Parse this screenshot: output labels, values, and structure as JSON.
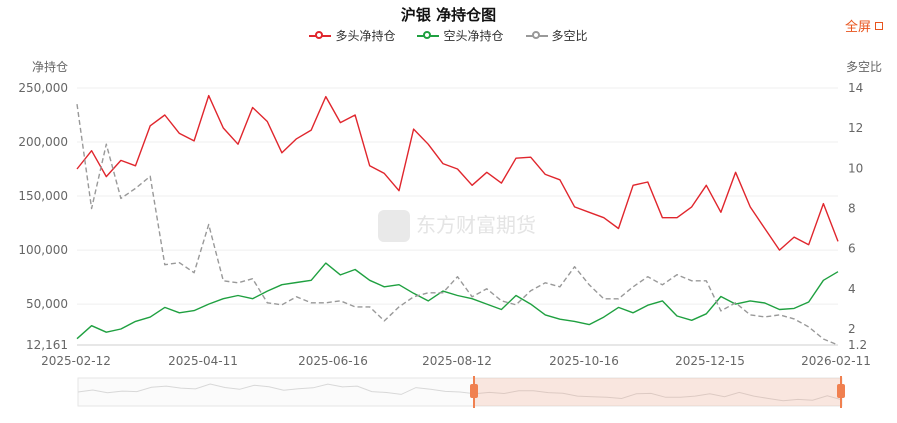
{
  "title": "沪银 净持仓图",
  "fullscreen_label": "全屏",
  "watermark": "东方财富期货",
  "legend": [
    {
      "label": "多头净持仓",
      "color": "#e0262d",
      "dashed": false
    },
    {
      "label": "空头净持仓",
      "color": "#1fa040",
      "dashed": false
    },
    {
      "label": "多空比",
      "color": "#999999",
      "dashed": true
    }
  ],
  "chart_data": {
    "type": "line",
    "ylabel": "净持仓",
    "y2label": "多空比",
    "ylim": [
      12161,
      250000
    ],
    "y2lim": [
      1.2,
      14
    ],
    "y_ticks": [
      "250,000",
      "200,000",
      "150,000",
      "100,000",
      "50,000",
      "12,161"
    ],
    "y_tick_values": [
      250000,
      200000,
      150000,
      100000,
      50000,
      12161
    ],
    "y2_ticks": [
      "14",
      "12",
      "10",
      "8",
      "6",
      "4",
      "2",
      "1.2"
    ],
    "y2_tick_values": [
      14,
      12,
      10,
      8,
      6,
      4,
      2,
      1.2
    ],
    "x_ticks": [
      "2025-02-12",
      "2025-04-11",
      "2025-06-16",
      "2025-08-12",
      "2025-10-16",
      "2025-12-15",
      "2026-02-11"
    ],
    "x": [
      "2025-02-12",
      "2025-02-19",
      "2025-02-26",
      "2025-03-05",
      "2025-03-12",
      "2025-03-19",
      "2025-03-26",
      "2025-04-02",
      "2025-04-09",
      "2025-04-16",
      "2025-04-23",
      "2025-04-30",
      "2025-05-07",
      "2025-05-14",
      "2025-05-21",
      "2025-05-28",
      "2025-06-04",
      "2025-06-11",
      "2025-06-18",
      "2025-06-25",
      "2025-07-02",
      "2025-07-09",
      "2025-07-16",
      "2025-07-23",
      "2025-07-30",
      "2025-08-06",
      "2025-08-13",
      "2025-08-20",
      "2025-08-27",
      "2025-09-03",
      "2025-09-10",
      "2025-09-17",
      "2025-09-24",
      "2025-10-01",
      "2025-10-08",
      "2025-10-15",
      "2025-10-22",
      "2025-10-29",
      "2025-11-05",
      "2025-11-12",
      "2025-11-19",
      "2025-11-26",
      "2025-12-03",
      "2025-12-10",
      "2025-12-17",
      "2025-12-24",
      "2025-12-31",
      "2026-01-07",
      "2026-01-14",
      "2026-01-21",
      "2026-01-28",
      "2026-02-04",
      "2026-02-11"
    ],
    "series": [
      {
        "name": "多头净持仓",
        "axis": "left",
        "values": [
          175000,
          192000,
          168000,
          183000,
          178000,
          215000,
          225000,
          208000,
          201000,
          243000,
          213000,
          198000,
          232000,
          219000,
          190000,
          203000,
          211000,
          242000,
          218000,
          225000,
          178000,
          171000,
          155000,
          212000,
          198000,
          180000,
          175000,
          160000,
          172000,
          162000,
          185000,
          186000,
          170000,
          165000,
          140000,
          135000,
          130000,
          120000,
          160000,
          163000,
          130000,
          130000,
          140000,
          160000,
          135000,
          172000,
          140000,
          120000,
          100000,
          112000,
          105000,
          143000,
          108000
        ]
      },
      {
        "name": "空头净持仓",
        "axis": "left",
        "values": [
          18000,
          30000,
          24000,
          27000,
          34000,
          38000,
          47000,
          42000,
          44000,
          50000,
          55000,
          58000,
          55000,
          62000,
          68000,
          70000,
          72000,
          88000,
          77000,
          82000,
          72000,
          66000,
          68000,
          60000,
          53000,
          62000,
          58000,
          55000,
          50000,
          45000,
          58000,
          50000,
          40000,
          36000,
          34000,
          31000,
          38000,
          47000,
          42000,
          49000,
          53000,
          39000,
          35000,
          41000,
          57000,
          50000,
          53000,
          51000,
          45000,
          46000,
          52000,
          72000,
          80000
        ]
      },
      {
        "name": "多空比",
        "axis": "right",
        "values": [
          13.2,
          8.0,
          11.2,
          8.5,
          9.0,
          9.6,
          5.2,
          5.3,
          4.8,
          7.2,
          4.4,
          4.3,
          4.5,
          3.3,
          3.2,
          3.6,
          3.3,
          3.3,
          3.4,
          3.1,
          3.1,
          2.4,
          3.1,
          3.6,
          3.8,
          3.8,
          4.6,
          3.6,
          4.0,
          3.4,
          3.2,
          3.9,
          4.3,
          4.1,
          5.1,
          4.2,
          3.5,
          3.5,
          4.1,
          4.6,
          4.2,
          4.7,
          4.4,
          4.4,
          2.9,
          3.3,
          2.7,
          2.6,
          2.7,
          2.5,
          2.1,
          1.5,
          1.2
        ]
      }
    ],
    "grid": true,
    "legend_position": "top-center"
  }
}
